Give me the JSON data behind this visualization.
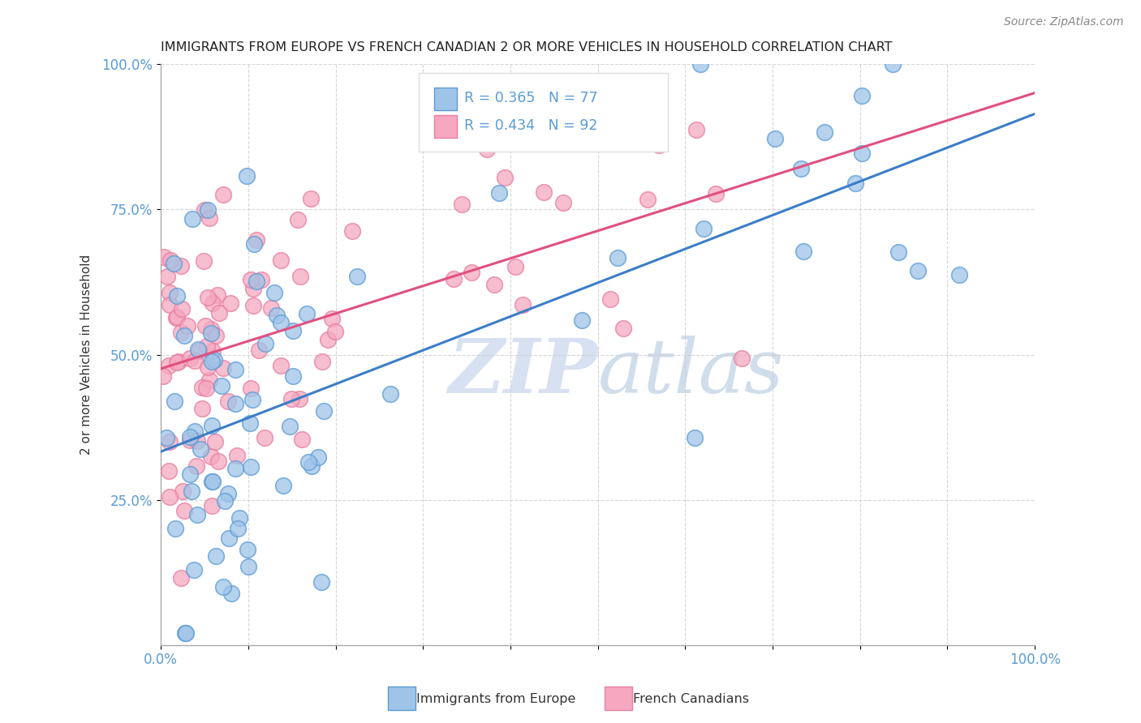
{
  "title": "IMMIGRANTS FROM EUROPE VS FRENCH CANADIAN 2 OR MORE VEHICLES IN HOUSEHOLD CORRELATION CHART",
  "source": "Source: ZipAtlas.com",
  "ylabel": "2 or more Vehicles in Household",
  "legend_label1": "Immigrants from Europe",
  "legend_label2": "French Canadians",
  "r1": 0.365,
  "n1": 77,
  "r2": 0.434,
  "n2": 92,
  "color_blue": "#9EC4E8",
  "color_pink": "#F5A8C0",
  "color_blue_edge": "#5B9BD5",
  "color_pink_edge": "#E87EA1",
  "color_blue_line": "#3B7EC8",
  "color_pink_line": "#E05080",
  "watermark_zip": "ZIP",
  "watermark_atlas": "atlas",
  "title_fontsize": 11.5,
  "tick_color": "#5B9BD5",
  "grid_color": "#CCCCCC",
  "spine_color": "#CCCCCC"
}
